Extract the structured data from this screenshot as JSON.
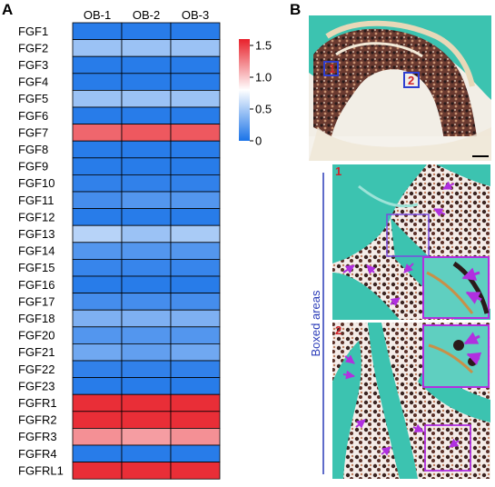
{
  "panel_a_label": "A",
  "panel_b_label": "B",
  "side_label": "Boxed areas",
  "inset_numbers": [
    "1",
    "2"
  ],
  "colors": {
    "low": "#1a73e8",
    "mid": "#ffffff",
    "high": "#e8202a",
    "box_blue": "#2f3fd0",
    "box_red": "#e03030",
    "arrow": "#b030e0",
    "tissue_teal": "#3cc3b0",
    "marrow_dark": "#4a2a28"
  },
  "chart_data": {
    "type": "heatmap",
    "columns": [
      "OB-1",
      "OB-2",
      "OB-3"
    ],
    "rows": [
      "FGF1",
      "FGF2",
      "FGF3",
      "FGF4",
      "FGF5",
      "FGF6",
      "FGF7",
      "FGF8",
      "FGF9",
      "FGF10",
      "FGF11",
      "FGF12",
      "FGF13",
      "FGF14",
      "FGF15",
      "FGF16",
      "FGF17",
      "FGF18",
      "FGF20",
      "FGF21",
      "FGF22",
      "FGF23",
      "FGFR1",
      "FGFR2",
      "FGFR3",
      "FGFR4",
      "FGFRL1"
    ],
    "values": [
      [
        0.05,
        0.05,
        0.05
      ],
      [
        0.45,
        0.45,
        0.45
      ],
      [
        0.05,
        0.05,
        0.05
      ],
      [
        0.05,
        0.05,
        0.05
      ],
      [
        0.45,
        0.45,
        0.45
      ],
      [
        0.05,
        0.05,
        0.05
      ],
      [
        1.35,
        1.4,
        1.4
      ],
      [
        0.05,
        0.05,
        0.05
      ],
      [
        0.05,
        0.05,
        0.05
      ],
      [
        0.08,
        0.08,
        0.08
      ],
      [
        0.15,
        0.2,
        0.2
      ],
      [
        0.05,
        0.05,
        0.05
      ],
      [
        0.55,
        0.45,
        0.5
      ],
      [
        0.2,
        0.2,
        0.2
      ],
      [
        0.1,
        0.1,
        0.1
      ],
      [
        0.05,
        0.05,
        0.05
      ],
      [
        0.15,
        0.15,
        0.15
      ],
      [
        0.35,
        0.35,
        0.35
      ],
      [
        0.2,
        0.2,
        0.2
      ],
      [
        0.3,
        0.25,
        0.3
      ],
      [
        0.08,
        0.08,
        0.08
      ],
      [
        0.05,
        0.05,
        0.05
      ],
      [
        1.55,
        1.55,
        1.55
      ],
      [
        1.55,
        1.55,
        1.55
      ],
      [
        1.2,
        1.15,
        1.2
      ],
      [
        0.05,
        0.05,
        0.05
      ],
      [
        1.55,
        1.55,
        1.55
      ]
    ],
    "colorbar": {
      "ticks": [
        "1.5",
        "1.0",
        "0.5",
        "0"
      ],
      "tick_values": [
        1.5,
        1.0,
        0.5,
        0
      ],
      "range": [
        0,
        1.6
      ]
    },
    "title": "",
    "xlabel": "",
    "ylabel": ""
  }
}
